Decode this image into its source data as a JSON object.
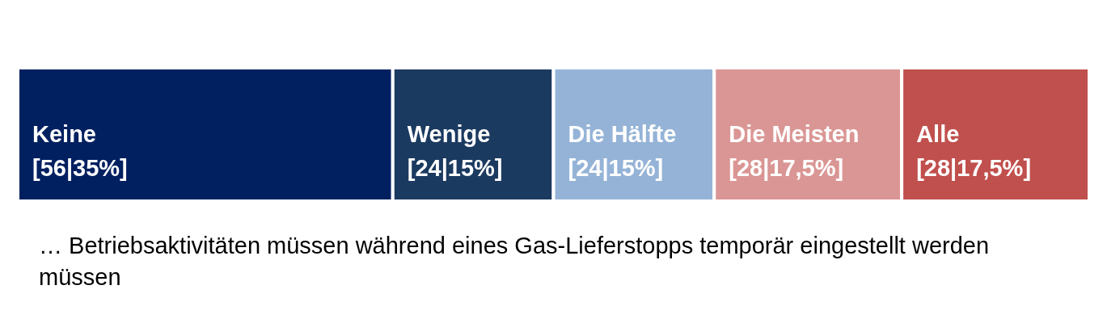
{
  "chart_data": {
    "type": "bar",
    "orientation": "horizontal",
    "stacked": true,
    "categories": [
      null
    ],
    "series": [
      {
        "name": "Keine",
        "color": "#002060",
        "values": [
          56
        ],
        "value_labels": [
          "[56|35%]"
        ]
      },
      {
        "name": "Wenige",
        "color": "#1b3a60",
        "values": [
          24
        ],
        "value_labels": [
          "[24|15%]"
        ]
      },
      {
        "name": "Die Hälfte",
        "color": "#95b3d7",
        "values": [
          24
        ],
        "value_labels": [
          "[24|15%]"
        ]
      },
      {
        "name": "Die Meisten",
        "color": "#da9694",
        "values": [
          28
        ],
        "value_labels": [
          "[28|17,5%]"
        ]
      },
      {
        "name": "Alle",
        "color": "#c0504d",
        "values": [
          28
        ],
        "value_labels": [
          "[28|17,5%]"
        ]
      }
    ],
    "annotations": [
      "… Betriebsaktivitäten müssen während eines Gas-Lieferstopps temporär eingestellt werden müssen"
    ]
  }
}
